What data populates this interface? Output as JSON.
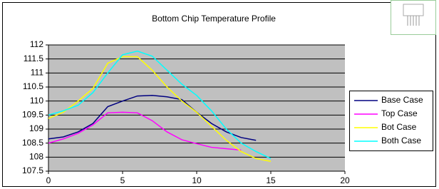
{
  "chart_data": {
    "type": "line",
    "title": "Bottom Chip Temperature Profile",
    "xlim": [
      0,
      20
    ],
    "xticks": [
      0,
      5,
      10,
      15,
      20
    ],
    "ylim": [
      107.5,
      112
    ],
    "yticks": [
      107.5,
      108,
      108.5,
      109,
      109.5,
      110,
      110.5,
      111,
      111.5,
      112
    ],
    "grid": true,
    "legend": "right",
    "plot_background": "#c0c0c0",
    "series": [
      {
        "name": "Base Case",
        "color": "#000080",
        "x": [
          0,
          1,
          2,
          3,
          4,
          5,
          6,
          7,
          8,
          9,
          10,
          11,
          12,
          13,
          14
        ],
        "values": [
          108.65,
          108.72,
          108.9,
          109.2,
          109.8,
          110.0,
          110.18,
          110.2,
          110.15,
          110.05,
          109.6,
          109.2,
          108.9,
          108.7,
          108.6
        ]
      },
      {
        "name": "Top Case",
        "color": "#ff00ff",
        "x": [
          0,
          1,
          2,
          3,
          4,
          5,
          6,
          7,
          8,
          9,
          10,
          11,
          12,
          13
        ],
        "values": [
          108.5,
          108.65,
          108.85,
          109.15,
          109.58,
          109.6,
          109.58,
          109.3,
          108.9,
          108.62,
          108.48,
          108.35,
          108.3,
          108.25
        ]
      },
      {
        "name": "Bot Case",
        "color": "#ffff00",
        "x": [
          0,
          1,
          2,
          3,
          4,
          5,
          6,
          7,
          8,
          9,
          10,
          11,
          12,
          13,
          14,
          15
        ],
        "values": [
          109.38,
          109.6,
          110.0,
          110.45,
          111.35,
          111.58,
          111.58,
          111.1,
          110.5,
          110.0,
          109.6,
          109.1,
          108.6,
          108.2,
          107.95,
          107.85
        ]
      },
      {
        "name": "Both Case",
        "color": "#00ffff",
        "x": [
          0,
          1,
          2,
          3,
          4,
          5,
          6,
          7,
          8,
          9,
          10,
          11,
          12,
          13,
          14,
          15
        ],
        "values": [
          109.5,
          109.65,
          109.85,
          110.3,
          111.0,
          111.65,
          111.78,
          111.6,
          111.1,
          110.6,
          110.2,
          109.65,
          109.0,
          108.5,
          108.2,
          107.95
        ]
      }
    ]
  }
}
